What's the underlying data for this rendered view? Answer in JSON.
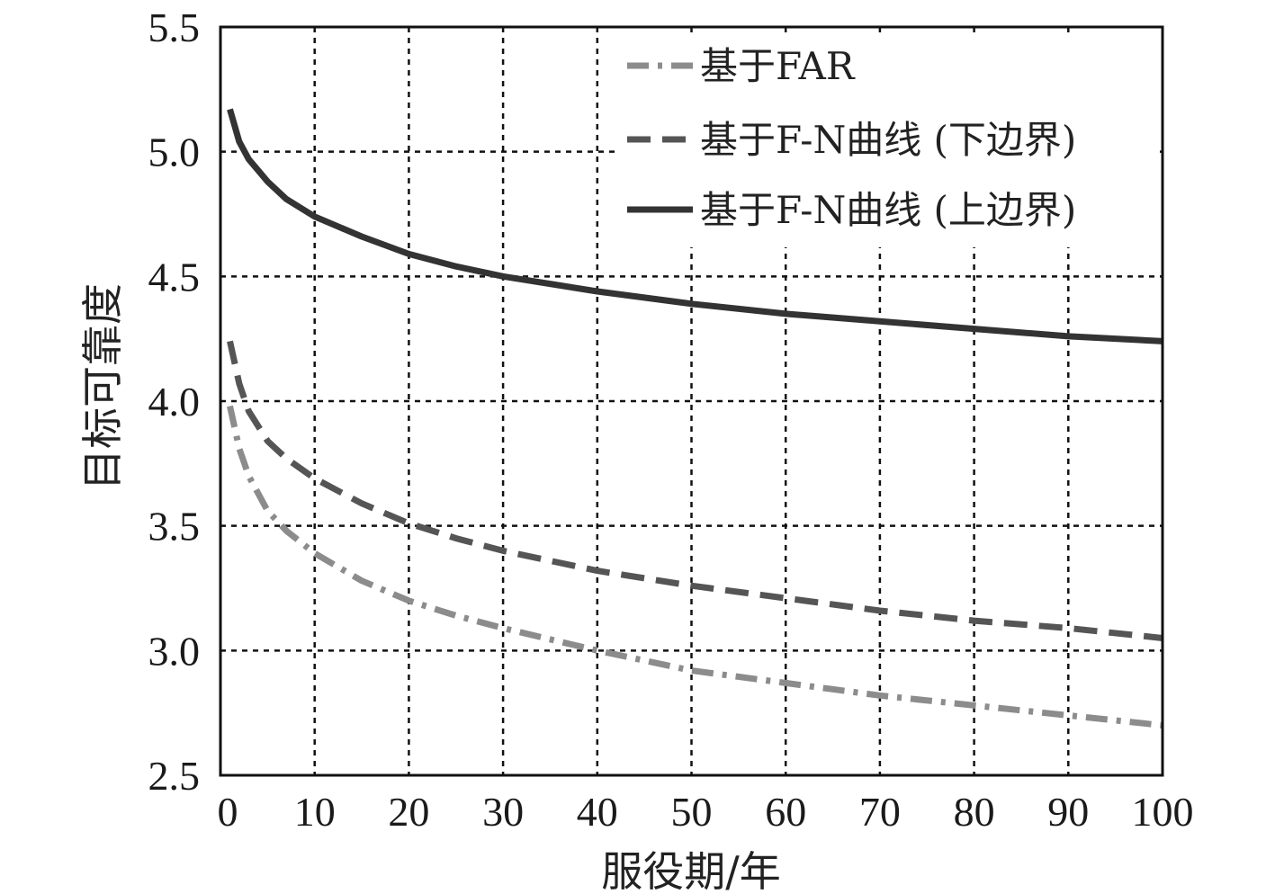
{
  "chart_data": {
    "type": "line",
    "title": "",
    "xlabel": "服役期/年",
    "ylabel": "目标可靠度",
    "xlim": [
      0,
      100
    ],
    "ylim": [
      2.5,
      5.5
    ],
    "x_ticks": [
      "0",
      "10",
      "20",
      "30",
      "40",
      "50",
      "60",
      "70",
      "80",
      "90",
      "100"
    ],
    "y_ticks": [
      "2.5",
      "3.0",
      "3.5",
      "4.0",
      "4.5",
      "5.0",
      "5.5"
    ],
    "grid": true,
    "legend_position": "top-right",
    "x": [
      1,
      2,
      3,
      5,
      7,
      10,
      15,
      20,
      25,
      30,
      40,
      50,
      60,
      70,
      80,
      90,
      100
    ],
    "series": [
      {
        "name": "基于FAR",
        "style": "dash-dot",
        "color": "#8c8c8c",
        "values": [
          3.98,
          3.81,
          3.7,
          3.56,
          3.48,
          3.39,
          3.28,
          3.2,
          3.14,
          3.09,
          3.0,
          2.92,
          2.87,
          2.82,
          2.78,
          2.74,
          2.7
        ]
      },
      {
        "name": "基于F-N曲线 (下边界)",
        "style": "dashed",
        "color": "#555555",
        "values": [
          4.24,
          4.07,
          3.96,
          3.84,
          3.77,
          3.69,
          3.59,
          3.51,
          3.45,
          3.4,
          3.32,
          3.26,
          3.21,
          3.16,
          3.12,
          3.09,
          3.05
        ]
      },
      {
        "name": "基于F-N曲线 (上边界)",
        "style": "solid",
        "color": "#333333",
        "values": [
          5.17,
          5.04,
          4.97,
          4.88,
          4.81,
          4.74,
          4.66,
          4.59,
          4.54,
          4.5,
          4.44,
          4.39,
          4.35,
          4.32,
          4.29,
          4.26,
          4.24
        ]
      }
    ]
  }
}
